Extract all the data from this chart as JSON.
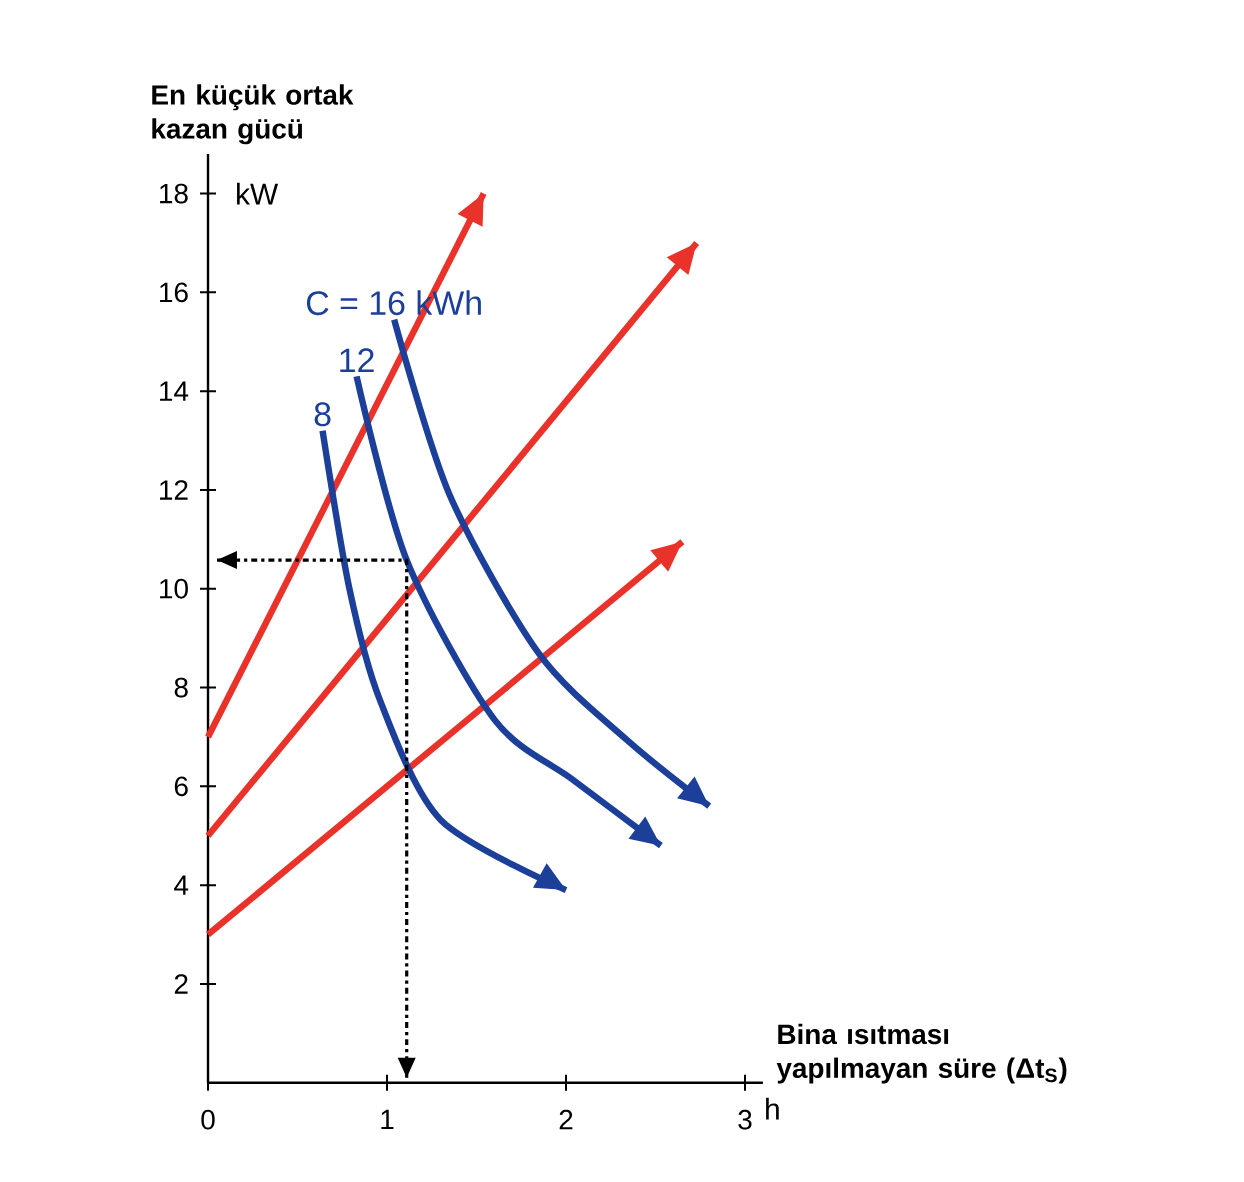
{
  "chart_data": {
    "type": "line",
    "xlabel": "Bina ısıtması yapılmayan süre (Δt$_{S}$)",
    "ylabel": "En küçük ortak kazan gücü",
    "annotations": [
      "kW",
      "h"
    ],
    "xlim": [
      0,
      3.1
    ],
    "ylim": [
      0,
      18.8
    ],
    "xticks": [
      0,
      1,
      2,
      3
    ],
    "yticks": [
      2,
      4,
      6,
      8,
      10,
      12,
      14,
      16,
      18
    ],
    "grid": false,
    "marker": "none",
    "series": [
      {
        "color": "#e8322a",
        "x": [
          0,
          1.54
        ],
        "values": [
          7,
          18.0
        ]
      },
      {
        "color": "#e8322a",
        "x": [
          0,
          2.73
        ],
        "values": [
          5,
          17.0
        ]
      },
      {
        "color": "#e8322a",
        "x": [
          0,
          2.65
        ],
        "values": [
          3,
          10.95
        ]
      },
      {
        "name": "8",
        "color": "#1c3f9a",
        "x": [
          0.64,
          0.79,
          0.96,
          1.3,
          2.0
        ],
        "values": [
          13.2,
          10.0,
          7.75,
          5.32,
          3.9
        ]
      },
      {
        "name": "12",
        "color": "#1c3f9a",
        "x": [
          0.83,
          1.11,
          1.6,
          2.04,
          2.53
        ],
        "values": [
          14.3,
          10.58,
          7.35,
          6.13,
          4.8
        ]
      },
      {
        "name": "C = 16 kWh",
        "color": "#1c3f9a",
        "x": [
          1.04,
          1.35,
          1.85,
          2.34,
          2.8
        ],
        "values": [
          15.45,
          11.9,
          8.68,
          6.94,
          5.6
        ]
      },
      {
        "color": "#000000",
        "line_style": "dashed",
        "x": [
          0.05,
          1.11,
          1.11
        ],
        "values": [
          10.58,
          10.58,
          0.1
        ]
      }
    ]
  }
}
